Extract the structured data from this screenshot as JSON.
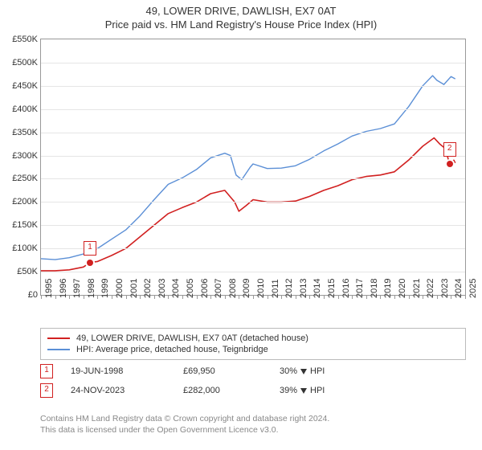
{
  "title": "49, LOWER DRIVE, DAWLISH, EX7 0AT",
  "subtitle": "Price paid vs. HM Land Registry's House Price Index (HPI)",
  "chart": {
    "type": "line",
    "background_color": "#ffffff",
    "grid_color": "#e5e5e5",
    "axis_color": "#999999",
    "label_fontsize": 11,
    "ylim": [
      0,
      550000
    ],
    "ytick_step": 50000,
    "ytick_labels": [
      "£0",
      "£50K",
      "£100K",
      "£150K",
      "£200K",
      "£250K",
      "£300K",
      "£350K",
      "£400K",
      "£450K",
      "£500K",
      "£550K"
    ],
    "xlim": [
      1995,
      2025
    ],
    "xticks": [
      1995,
      1996,
      1997,
      1998,
      1999,
      2000,
      2001,
      2002,
      2003,
      2004,
      2005,
      2006,
      2007,
      2008,
      2009,
      2010,
      2011,
      2012,
      2013,
      2014,
      2015,
      2016,
      2017,
      2018,
      2019,
      2020,
      2021,
      2022,
      2023,
      2024,
      2025
    ],
    "series": [
      {
        "name": "49, LOWER DRIVE, DAWLISH, EX7 0AT (detached house)",
        "color": "#d12020",
        "line_width": 1.6,
        "points": [
          [
            1995.0,
            52000
          ],
          [
            1996.0,
            52000
          ],
          [
            1997.0,
            54000
          ],
          [
            1998.0,
            60000
          ],
          [
            1998.47,
            69950
          ],
          [
            1999.0,
            72000
          ],
          [
            2000.0,
            85000
          ],
          [
            2001.0,
            100000
          ],
          [
            2002.0,
            125000
          ],
          [
            2003.0,
            150000
          ],
          [
            2004.0,
            175000
          ],
          [
            2005.0,
            188000
          ],
          [
            2006.0,
            200000
          ],
          [
            2007.0,
            218000
          ],
          [
            2008.0,
            225000
          ],
          [
            2008.7,
            200000
          ],
          [
            2009.0,
            180000
          ],
          [
            2009.5,
            192000
          ],
          [
            2010.0,
            205000
          ],
          [
            2011.0,
            200000
          ],
          [
            2012.0,
            200000
          ],
          [
            2013.0,
            202000
          ],
          [
            2014.0,
            212000
          ],
          [
            2015.0,
            225000
          ],
          [
            2016.0,
            235000
          ],
          [
            2017.0,
            248000
          ],
          [
            2018.0,
            255000
          ],
          [
            2019.0,
            258000
          ],
          [
            2020.0,
            265000
          ],
          [
            2021.0,
            290000
          ],
          [
            2022.0,
            320000
          ],
          [
            2022.8,
            338000
          ],
          [
            2023.2,
            325000
          ],
          [
            2023.6,
            315000
          ],
          [
            2023.9,
            282000
          ],
          [
            2024.2,
            290000
          ],
          [
            2024.3,
            284000
          ]
        ]
      },
      {
        "name": "HPI: Average price, detached house, Teignbridge",
        "color": "#5b8fd6",
        "line_width": 1.4,
        "points": [
          [
            1995.0,
            78000
          ],
          [
            1996.0,
            76000
          ],
          [
            1997.0,
            80000
          ],
          [
            1998.0,
            88000
          ],
          [
            1999.0,
            100000
          ],
          [
            2000.0,
            120000
          ],
          [
            2001.0,
            140000
          ],
          [
            2002.0,
            170000
          ],
          [
            2003.0,
            205000
          ],
          [
            2004.0,
            238000
          ],
          [
            2005.0,
            252000
          ],
          [
            2006.0,
            270000
          ],
          [
            2007.0,
            295000
          ],
          [
            2008.0,
            305000
          ],
          [
            2008.4,
            300000
          ],
          [
            2008.8,
            258000
          ],
          [
            2009.2,
            248000
          ],
          [
            2009.8,
            275000
          ],
          [
            2010.0,
            282000
          ],
          [
            2011.0,
            272000
          ],
          [
            2012.0,
            273000
          ],
          [
            2013.0,
            278000
          ],
          [
            2014.0,
            292000
          ],
          [
            2015.0,
            310000
          ],
          [
            2016.0,
            325000
          ],
          [
            2017.0,
            342000
          ],
          [
            2018.0,
            352000
          ],
          [
            2019.0,
            358000
          ],
          [
            2020.0,
            368000
          ],
          [
            2021.0,
            405000
          ],
          [
            2022.0,
            450000
          ],
          [
            2022.7,
            472000
          ],
          [
            2023.0,
            462000
          ],
          [
            2023.5,
            453000
          ],
          [
            2024.0,
            470000
          ],
          [
            2024.3,
            465000
          ]
        ]
      }
    ],
    "markers": [
      {
        "n": "1",
        "x": 1998.47,
        "y": 69950,
        "color": "#d12020"
      },
      {
        "n": "2",
        "x": 2023.9,
        "y": 282000,
        "color": "#d12020"
      }
    ]
  },
  "legend": {
    "items": [
      {
        "color": "#d12020",
        "label": "49, LOWER DRIVE, DAWLISH, EX7 0AT (detached house)"
      },
      {
        "color": "#5b8fd6",
        "label": "HPI: Average price, detached house, Teignbridge"
      }
    ]
  },
  "transactions": [
    {
      "n": "1",
      "date": "19-JUN-1998",
      "price": "£69,950",
      "diff_pct": "30%",
      "diff_dir": "down",
      "diff_label": "HPI"
    },
    {
      "n": "2",
      "date": "24-NOV-2023",
      "price": "£282,000",
      "diff_pct": "39%",
      "diff_dir": "down",
      "diff_label": "HPI"
    }
  ],
  "footer": {
    "line1": "Contains HM Land Registry data © Crown copyright and database right 2024.",
    "line2": "This data is licensed under the Open Government Licence v3.0."
  }
}
